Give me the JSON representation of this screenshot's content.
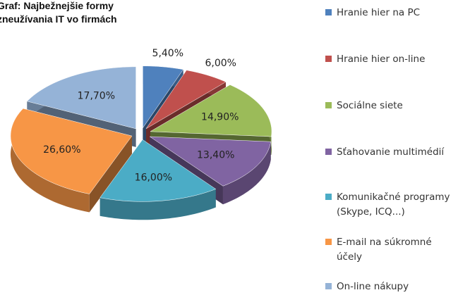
{
  "chart_data": {
    "type": "pie",
    "title": [
      "Graf: Najbežnejšie formy",
      "zneužívania IT vo firmách"
    ],
    "categories": [
      "Hranie hier na PC",
      "Hranie hier on-line",
      "Sociálne siete",
      "Sťahovanie multimédií",
      "Komunikačné programy\n(Skype, ICQ...)",
      "E-mail na súkromné\núčely",
      "On-line nákupy"
    ],
    "values": [
      5.4,
      6.0,
      14.9,
      13.4,
      16.0,
      26.6,
      17.7
    ],
    "value_labels": [
      "5,40%",
      "6,00%",
      "14,90%",
      "13,40%",
      "16,00%",
      "26,60%",
      "17,70%"
    ],
    "colors": [
      "#4f81bd",
      "#c0504d",
      "#9bbb59",
      "#8064a2",
      "#4bacc6",
      "#f79646",
      "#95b3d7"
    ],
    "legend": "right"
  }
}
